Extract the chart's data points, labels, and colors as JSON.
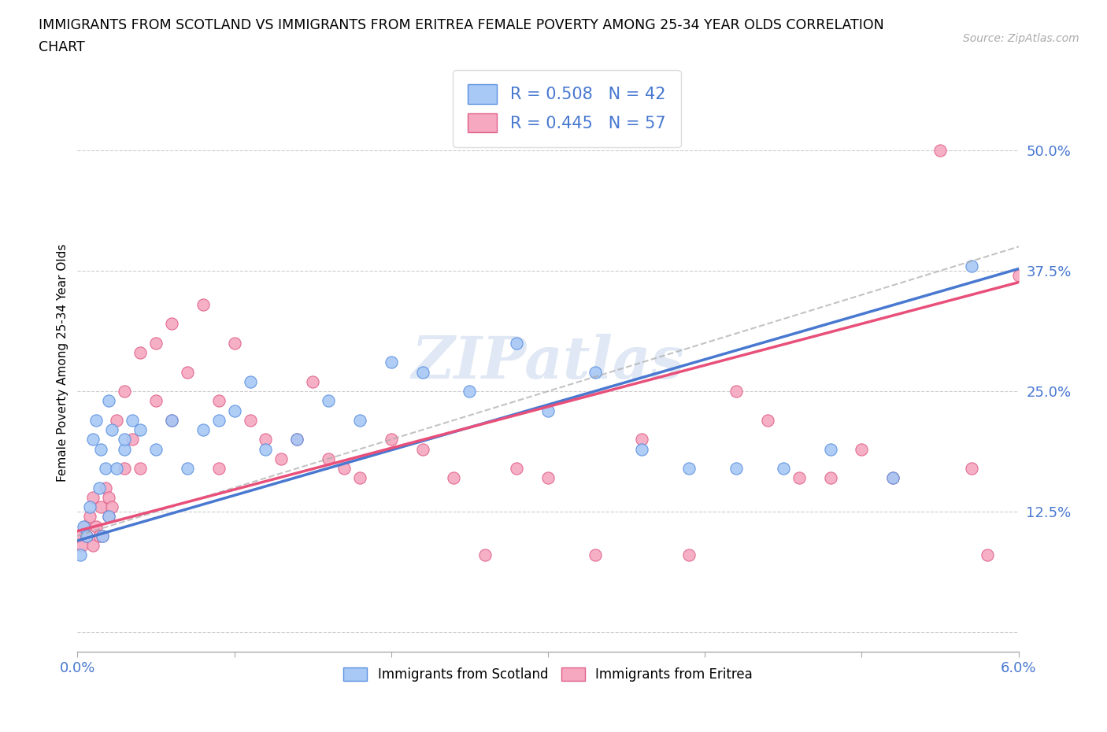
{
  "title": "IMMIGRANTS FROM SCOTLAND VS IMMIGRANTS FROM ERITREA FEMALE POVERTY AMONG 25-34 YEAR OLDS CORRELATION\nCHART",
  "source": "Source: ZipAtlas.com",
  "ylabel": "Female Poverty Among 25-34 Year Olds",
  "xlim": [
    0.0,
    0.06
  ],
  "ylim": [
    -0.02,
    0.58
  ],
  "ytick_vals": [
    0.0,
    0.125,
    0.25,
    0.375,
    0.5
  ],
  "ytick_labels": [
    "",
    "12.5%",
    "25.0%",
    "37.5%",
    "50.0%"
  ],
  "xtick_vals": [
    0.0,
    0.01,
    0.02,
    0.03,
    0.04,
    0.05,
    0.06
  ],
  "xtick_labels": [
    "0.0%",
    "",
    "",
    "",
    "",
    "",
    "6.0%"
  ],
  "scotland_color": "#a8c8f5",
  "eritrea_color": "#f5a8c0",
  "scotland_line_color": "#4878d0",
  "eritrea_line_color": "#e8507a",
  "scotland_edge_color": "#5a90e0",
  "eritrea_edge_color": "#e0608a",
  "R_scotland": 0.508,
  "N_scotland": 42,
  "R_eritrea": 0.445,
  "N_eritrea": 57,
  "watermark": "ZIPatlas",
  "scotland_x": [
    0.0002,
    0.0004,
    0.0006,
    0.0008,
    0.001,
    0.0012,
    0.0014,
    0.0015,
    0.0016,
    0.0018,
    0.002,
    0.002,
    0.0022,
    0.0025,
    0.003,
    0.003,
    0.0035,
    0.004,
    0.005,
    0.006,
    0.007,
    0.008,
    0.009,
    0.01,
    0.011,
    0.012,
    0.014,
    0.016,
    0.018,
    0.02,
    0.022,
    0.025,
    0.028,
    0.03,
    0.033,
    0.036,
    0.039,
    0.042,
    0.045,
    0.048,
    0.052,
    0.057
  ],
  "scotland_y": [
    0.08,
    0.11,
    0.1,
    0.13,
    0.2,
    0.22,
    0.15,
    0.19,
    0.1,
    0.17,
    0.12,
    0.24,
    0.21,
    0.17,
    0.19,
    0.2,
    0.22,
    0.21,
    0.19,
    0.22,
    0.17,
    0.21,
    0.22,
    0.23,
    0.26,
    0.19,
    0.2,
    0.24,
    0.22,
    0.28,
    0.27,
    0.25,
    0.3,
    0.23,
    0.27,
    0.19,
    0.17,
    0.17,
    0.17,
    0.19,
    0.16,
    0.38
  ],
  "eritrea_x": [
    0.0001,
    0.0003,
    0.0005,
    0.0006,
    0.0008,
    0.001,
    0.001,
    0.0012,
    0.0014,
    0.0015,
    0.0016,
    0.0018,
    0.002,
    0.002,
    0.0022,
    0.0025,
    0.003,
    0.003,
    0.0035,
    0.004,
    0.004,
    0.005,
    0.005,
    0.006,
    0.006,
    0.007,
    0.008,
    0.009,
    0.009,
    0.01,
    0.011,
    0.012,
    0.013,
    0.014,
    0.015,
    0.016,
    0.017,
    0.018,
    0.02,
    0.022,
    0.024,
    0.026,
    0.028,
    0.03,
    0.033,
    0.036,
    0.039,
    0.042,
    0.044,
    0.046,
    0.048,
    0.05,
    0.052,
    0.055,
    0.057,
    0.058,
    0.06
  ],
  "eritrea_y": [
    0.1,
    0.09,
    0.11,
    0.1,
    0.12,
    0.09,
    0.14,
    0.11,
    0.1,
    0.13,
    0.1,
    0.15,
    0.12,
    0.14,
    0.13,
    0.22,
    0.17,
    0.25,
    0.2,
    0.17,
    0.29,
    0.24,
    0.3,
    0.22,
    0.32,
    0.27,
    0.34,
    0.24,
    0.17,
    0.3,
    0.22,
    0.2,
    0.18,
    0.2,
    0.26,
    0.18,
    0.17,
    0.16,
    0.2,
    0.19,
    0.16,
    0.08,
    0.17,
    0.16,
    0.08,
    0.2,
    0.08,
    0.25,
    0.22,
    0.16,
    0.16,
    0.19,
    0.16,
    0.5,
    0.17,
    0.08,
    0.37
  ]
}
